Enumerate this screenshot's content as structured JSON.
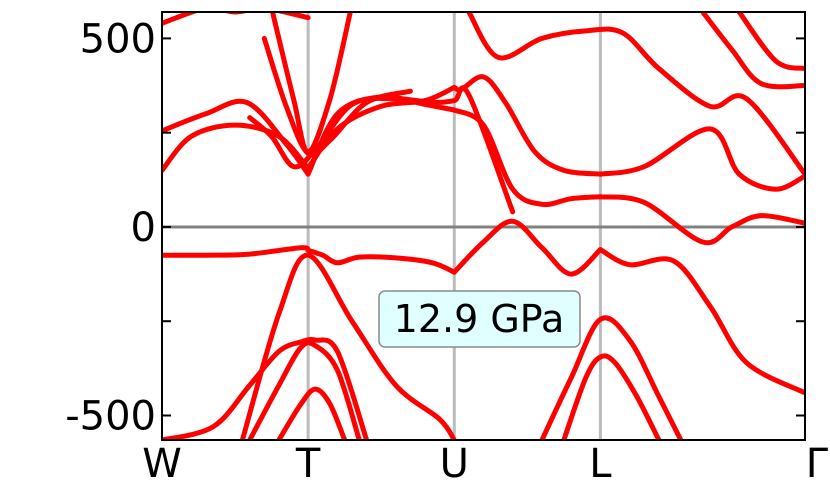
{
  "chart_data": {
    "type": "line",
    "title": "",
    "xlabel": "",
    "ylabel": "",
    "annotation": "12.9 GPa",
    "x_ticks": [
      "W",
      "T",
      "U",
      "L",
      "Γ"
    ],
    "x_tick_positions": [
      0,
      1,
      2,
      3,
      4.4
    ],
    "y_ticks": [
      "500",
      "0",
      "-500"
    ],
    "y_tick_values": [
      500,
      0,
      -500
    ],
    "ylim": [
      -565,
      570
    ],
    "xlim": [
      0,
      4.4
    ],
    "grid": "vertical lines at high-symmetry points",
    "zero_line": 0,
    "series_color": "#ff0000",
    "annotation_box_color": "#e0ffff",
    "series": [
      {
        "x": [
          0,
          0.3,
          0.6,
          0.95,
          1
        ],
        "values": [
          -75,
          -75,
          -72,
          -55,
          -62
        ]
      },
      {
        "x": [
          1,
          1.1,
          1.2,
          1.35,
          1.6,
          1.85,
          2
        ],
        "values": [
          -62,
          -75,
          -95,
          -80,
          -82,
          -95,
          -120
        ]
      },
      {
        "x": [
          2,
          2.2,
          2.4,
          2.6,
          2.8,
          3
        ],
        "values": [
          -120,
          -40,
          15,
          -55,
          -125,
          -60
        ]
      },
      {
        "x": [
          3,
          3.2,
          3.5,
          3.75,
          4.0,
          4.4
        ],
        "values": [
          -60,
          -100,
          -90,
          -210,
          -360,
          -440
        ]
      },
      {
        "x": [
          0,
          0.3,
          0.58,
          0.85,
          1
        ],
        "values": [
          255,
          300,
          330,
          220,
          140
        ]
      },
      {
        "x": [
          1,
          1.2,
          1.5,
          1.8,
          2
        ],
        "values": [
          140,
          300,
          345,
          325,
          310
        ]
      },
      {
        "x": [
          2,
          2.2,
          2.4,
          2.6,
          2.8,
          3
        ],
        "values": [
          310,
          270,
          100,
          60,
          75,
          80
        ]
      },
      {
        "x": [
          3,
          3.3,
          3.7,
          3.9,
          4.1,
          4.4
        ],
        "values": [
          80,
          65,
          -40,
          0,
          30,
          10
        ]
      },
      {
        "x": [
          0,
          0.2,
          0.5,
          0.8,
          1
        ],
        "values": [
          150,
          240,
          270,
          240,
          155
        ]
      },
      {
        "x": [
          1,
          1.2,
          1.5,
          1.8,
          2
        ],
        "values": [
          155,
          260,
          320,
          335,
          370
        ]
      },
      {
        "x": [
          2,
          2.05,
          2.2,
          2.35,
          2.55,
          2.75,
          3
        ],
        "values": [
          370,
          365,
          398,
          330,
          200,
          150,
          140
        ]
      },
      {
        "x": [
          3,
          3.3,
          3.75,
          3.95,
          4.2,
          4.4
        ],
        "values": [
          140,
          160,
          260,
          140,
          100,
          135
        ]
      },
      {
        "x": [
          0.6,
          0.75,
          0.9,
          1.05,
          1.3,
          1.6,
          1.85,
          2,
          2.1,
          2.4
        ],
        "values": [
          290,
          240,
          160,
          205,
          325,
          340,
          330,
          335,
          350,
          40
        ]
      },
      {
        "x": [
          0.7,
          0.85,
          1,
          1.15,
          1.4,
          1.7
        ],
        "values": [
          500,
          320,
          195,
          230,
          330,
          360
        ]
      },
      {
        "x": [
          0.75,
          0.9,
          1,
          1.15,
          1.3
        ],
        "values": [
          580,
          340,
          200,
          340,
          590
        ]
      },
      {
        "x": [
          2.1,
          2.3,
          2.6,
          2.9,
          3.15,
          3.4,
          3.75,
          4.0,
          4.4
        ],
        "values": [
          570,
          450,
          500,
          520,
          515,
          420,
          320,
          340,
          140
        ]
      },
      {
        "x": [
          3.7,
          3.9,
          4.1,
          4.4
        ],
        "values": [
          570,
          470,
          380,
          375
        ]
      },
      {
        "x": [
          3.95,
          4.2,
          4.4
        ],
        "values": [
          570,
          440,
          420
        ]
      },
      {
        "x": [
          0,
          0.3,
          0.5,
          0.7,
          1
        ],
        "values": [
          540,
          580,
          570,
          580,
          555
        ]
      },
      {
        "x": [
          0,
          0.35,
          0.6,
          0.8,
          0.95,
          1.05,
          1.2,
          1.4
        ],
        "values": [
          -565,
          -530,
          -420,
          -330,
          -305,
          -300,
          -330,
          -565
        ]
      },
      {
        "x": [
          0.6,
          0.8,
          0.95,
          1.05,
          1.2,
          1.35
        ],
        "values": [
          -565,
          -420,
          -320,
          -315,
          -380,
          -565
        ]
      },
      {
        "x": [
          0.8,
          0.95,
          1.05,
          1.15,
          1.25
        ],
        "values": [
          -565,
          -470,
          -430,
          -470,
          -565
        ]
      },
      {
        "x": [
          0.55,
          0.8,
          1,
          1.3,
          1.6,
          1.9,
          2
        ],
        "values": [
          -565,
          -230,
          -75,
          -250,
          -420,
          -510,
          -565
        ]
      },
      {
        "x": [
          2.6,
          2.8,
          3,
          3.2,
          3.4,
          3.55
        ],
        "values": [
          -565,
          -400,
          -245,
          -300,
          -450,
          -565
        ]
      },
      {
        "x": [
          2.75,
          2.9,
          3,
          3.1,
          3.25,
          3.4
        ],
        "values": [
          -565,
          -400,
          -345,
          -360,
          -450,
          -565
        ]
      }
    ]
  }
}
